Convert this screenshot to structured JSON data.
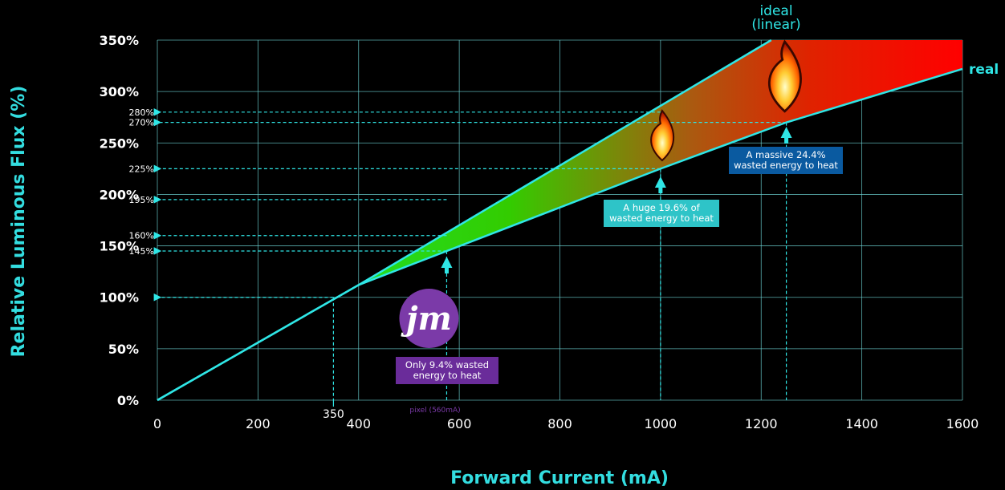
{
  "chart_data": {
    "type": "line",
    "xlabel": "Forward Current (mA)",
    "ylabel": "Relative Luminous Flux (%)",
    "xlim": [
      0,
      1600
    ],
    "ylim": [
      0,
      350
    ],
    "x_ticks": [
      "0",
      "200",
      "400",
      "600",
      "800",
      "1000",
      "1200",
      "1400",
      "1600"
    ],
    "y_ticks": [
      "0%",
      "50%",
      "100%",
      "150%",
      "200%",
      "250%",
      "300%",
      "350%"
    ],
    "y_small_ticks": [
      "280%",
      "270%",
      "225%",
      "195%",
      "160%",
      "145%"
    ],
    "y_small_values": [
      280,
      270,
      225,
      195,
      160,
      145
    ],
    "grid": true,
    "series": [
      {
        "name": "ideal\n(linear)",
        "x": [
          0,
          400,
          1220
        ],
        "y": [
          0,
          112,
          350
        ]
      },
      {
        "name": "real",
        "x": [
          0,
          400,
          1000,
          1250,
          1600
        ],
        "y": [
          0,
          112,
          225,
          270,
          322
        ]
      }
    ],
    "marker_350": "350",
    "pixel_label": "pixel (560mA)",
    "annotations": [
      {
        "lines": [
          "Only 9.4% wasted",
          "energy to heat"
        ],
        "color": "#6a2c9a",
        "x": 575
      },
      {
        "lines": [
          "A huge 19.6% of",
          "wasted energy to heat"
        ],
        "color": "#2ec4c8",
        "x": 1000
      },
      {
        "lines": [
          "A massive 24.4%",
          "wasted energy to heat"
        ],
        "color": "#0a5aa0",
        "x": 1250
      }
    ],
    "colors": {
      "line": "#2fe6e6",
      "grid": "#6fd6d8",
      "green": "#22dd22",
      "red": "#ff0000",
      "purple": "#7b3aa8"
    }
  }
}
